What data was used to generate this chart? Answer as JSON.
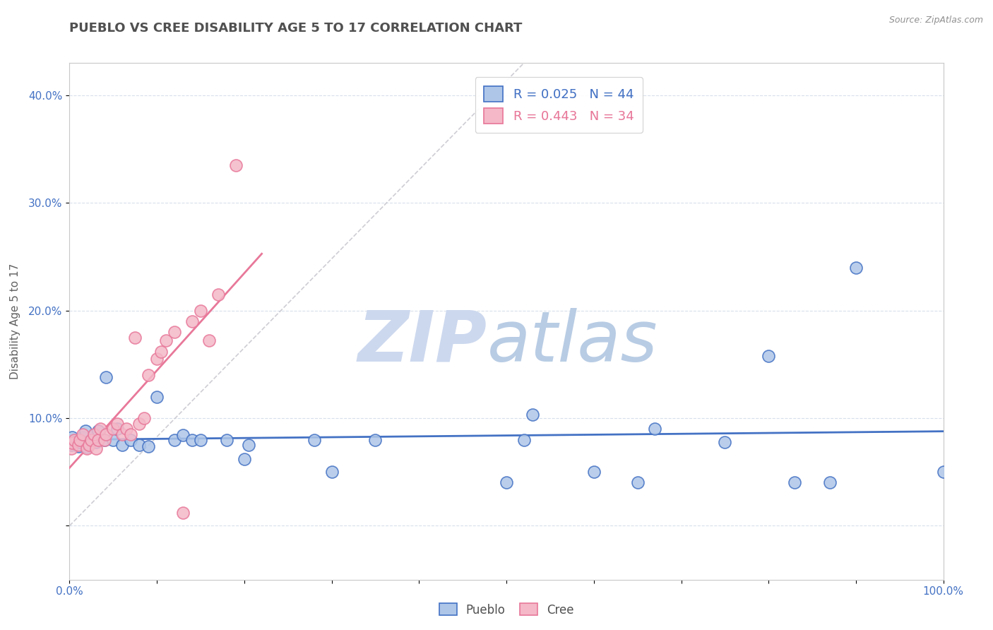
{
  "title": "PUEBLO VS CREE DISABILITY AGE 5 TO 17 CORRELATION CHART",
  "source": "Source: ZipAtlas.com",
  "ylabel": "Disability Age 5 to 17",
  "xlim": [
    0,
    1.0
  ],
  "ylim": [
    -0.05,
    0.43
  ],
  "yticks": [
    0.0,
    0.1,
    0.2,
    0.3,
    0.4
  ],
  "ytick_labels": [
    "",
    "10.0%",
    "20.0%",
    "30.0%",
    "40.0%"
  ],
  "xticks": [
    0.0,
    0.1,
    0.2,
    0.3,
    0.4,
    0.5,
    0.6,
    0.7,
    0.8,
    0.9,
    1.0
  ],
  "xtick_labels": [
    "0.0%",
    "",
    "",
    "",
    "",
    "",
    "",
    "",
    "",
    "",
    "100.0%"
  ],
  "pueblo_R": 0.025,
  "pueblo_N": 44,
  "cree_R": 0.443,
  "cree_N": 34,
  "pueblo_color": "#aec6e8",
  "cree_color": "#f4b8c8",
  "pueblo_edge_color": "#4472c4",
  "cree_edge_color": "#e8789a",
  "pueblo_line_color": "#4472c4",
  "cree_line_color": "#e8789a",
  "diagonal_color": "#c8c8d0",
  "legend_label_pueblo": "Pueblo",
  "legend_label_cree": "Cree",
  "pueblo_x": [
    0.002,
    0.003,
    0.005,
    0.01,
    0.012,
    0.015,
    0.018,
    0.02,
    0.022,
    0.025,
    0.028,
    0.03,
    0.033,
    0.04,
    0.042,
    0.05,
    0.055,
    0.06,
    0.07,
    0.08,
    0.09,
    0.1,
    0.12,
    0.13,
    0.14,
    0.15,
    0.18,
    0.2,
    0.205,
    0.28,
    0.3,
    0.35,
    0.5,
    0.52,
    0.53,
    0.6,
    0.65,
    0.67,
    0.75,
    0.8,
    0.83,
    0.87,
    0.9,
    1.0
  ],
  "pueblo_y": [
    0.075,
    0.082,
    0.078,
    0.074,
    0.078,
    0.082,
    0.088,
    0.073,
    0.077,
    0.08,
    0.084,
    0.078,
    0.088,
    0.08,
    0.138,
    0.08,
    0.09,
    0.075,
    0.08,
    0.075,
    0.074,
    0.12,
    0.08,
    0.084,
    0.08,
    0.08,
    0.08,
    0.062,
    0.075,
    0.08,
    0.05,
    0.08,
    0.04,
    0.08,
    0.103,
    0.05,
    0.04,
    0.09,
    0.078,
    0.158,
    0.04,
    0.04,
    0.24,
    0.05
  ],
  "cree_x": [
    0.002,
    0.003,
    0.005,
    0.01,
    0.012,
    0.015,
    0.02,
    0.022,
    0.025,
    0.028,
    0.03,
    0.033,
    0.035,
    0.04,
    0.042,
    0.05,
    0.055,
    0.06,
    0.065,
    0.07,
    0.075,
    0.08,
    0.085,
    0.09,
    0.1,
    0.105,
    0.11,
    0.12,
    0.13,
    0.14,
    0.15,
    0.16,
    0.17,
    0.19
  ],
  "cree_y": [
    0.072,
    0.077,
    0.08,
    0.075,
    0.08,
    0.085,
    0.072,
    0.075,
    0.08,
    0.085,
    0.072,
    0.08,
    0.09,
    0.08,
    0.085,
    0.09,
    0.095,
    0.085,
    0.09,
    0.085,
    0.175,
    0.095,
    0.1,
    0.14,
    0.155,
    0.162,
    0.172,
    0.18,
    0.012,
    0.19,
    0.2,
    0.172,
    0.215,
    0.335
  ],
  "background_color": "#ffffff",
  "grid_color": "#d8e0ec",
  "title_color": "#505050",
  "axis_color": "#4472c4",
  "label_color": "#606060",
  "watermark_zip_color": "#ccd8ee",
  "watermark_atlas_color": "#b8cce4"
}
